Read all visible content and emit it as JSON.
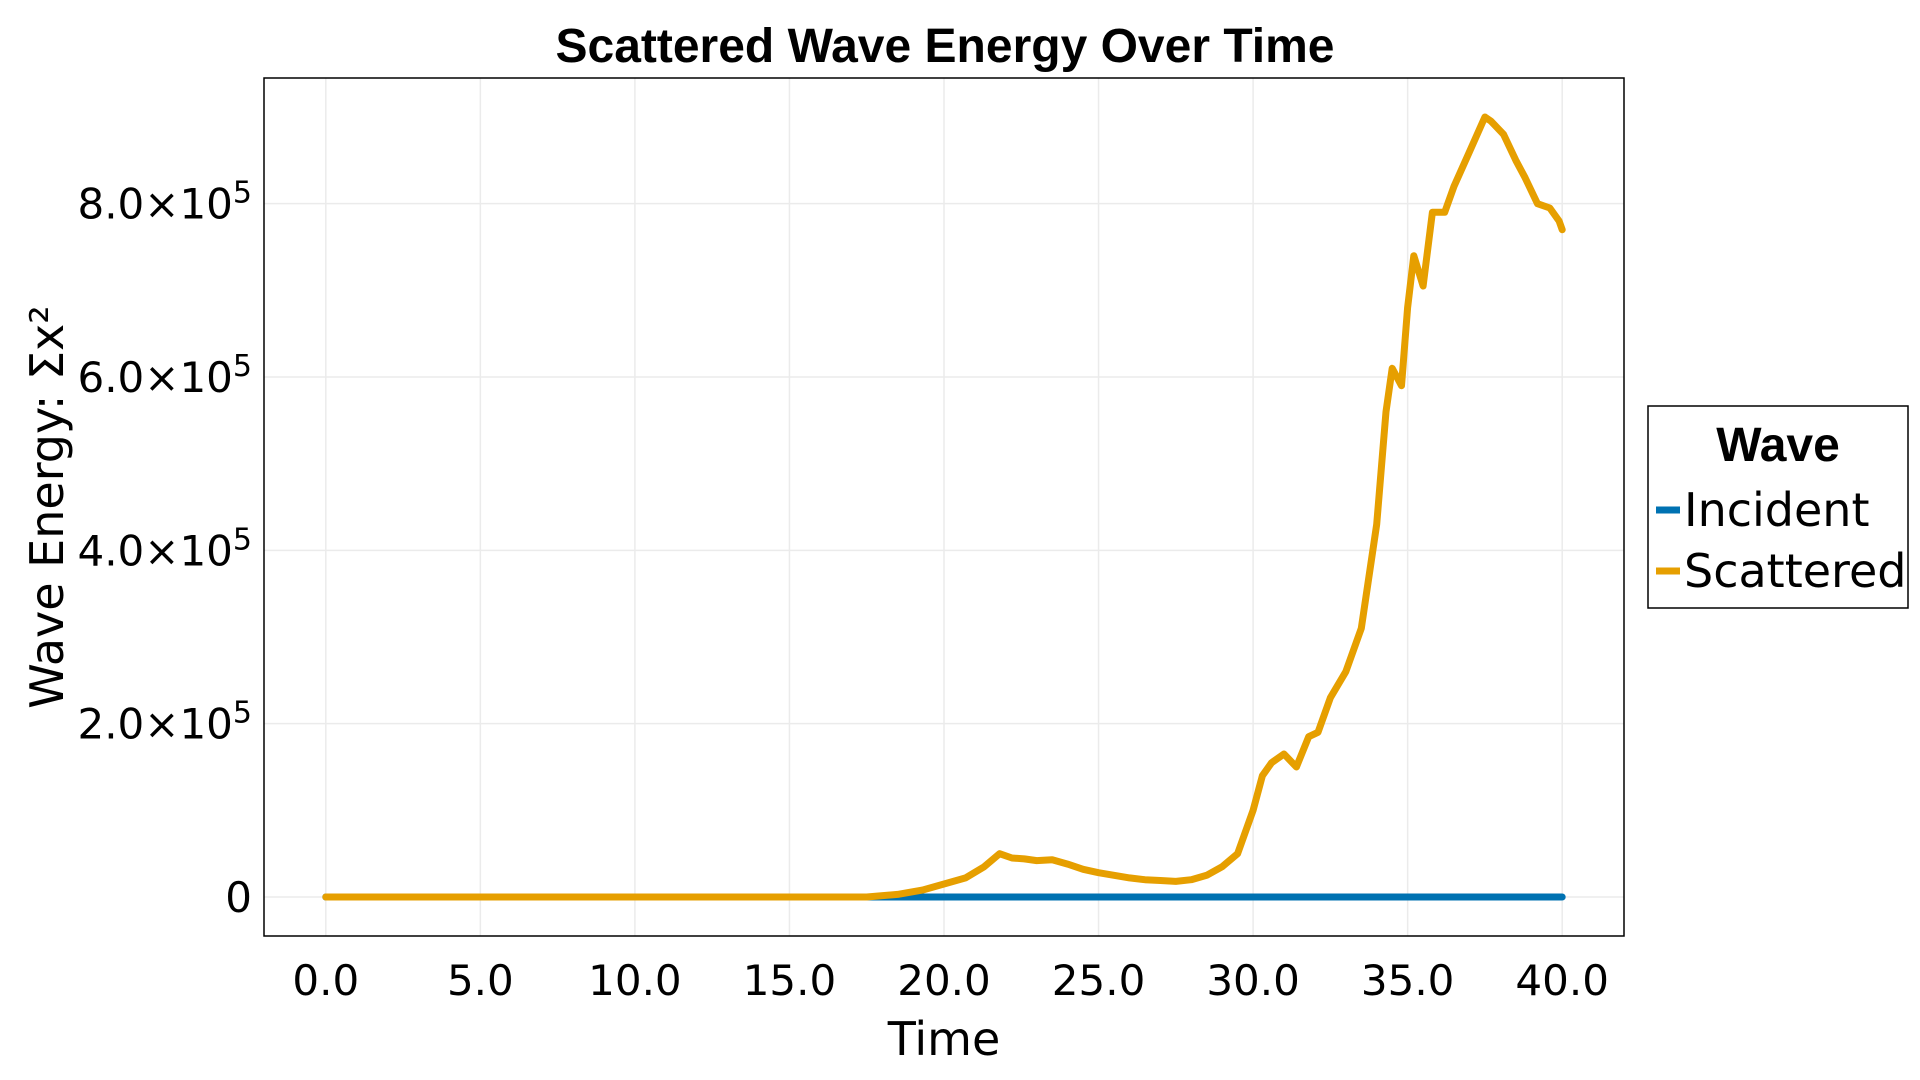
{
  "chart_data": {
    "type": "line",
    "title": "Scattered Wave Energy Over Time",
    "xlabel": "Time",
    "ylabel": "Wave Energy: Σx²",
    "xlim": [
      -2.0,
      42.0
    ],
    "ylim": [
      -45000,
      945000
    ],
    "x_ticks": [
      0,
      5,
      10,
      15,
      20,
      25,
      30,
      35,
      40
    ],
    "x_tick_labels": [
      "0.0",
      "5.0",
      "10.0",
      "15.0",
      "20.0",
      "25.0",
      "30.0",
      "35.0",
      "40.0"
    ],
    "y_ticks": [
      0,
      200000,
      400000,
      600000,
      800000
    ],
    "y_tick_labels": [
      {
        "mantissa": "0",
        "exponent": ""
      },
      {
        "mantissa": "2.0×10",
        "exponent": "5"
      },
      {
        "mantissa": "4.0×10",
        "exponent": "5"
      },
      {
        "mantissa": "6.0×10",
        "exponent": "5"
      },
      {
        "mantissa": "8.0×10",
        "exponent": "5"
      }
    ],
    "grid": true,
    "legend": {
      "title": "Wave",
      "placement": "right"
    },
    "series": [
      {
        "name": "Incident",
        "color": "#0072b2",
        "x": [
          0,
          40
        ],
        "y": [
          0,
          0
        ]
      },
      {
        "name": "Scattered",
        "color": "#e69f00",
        "x": [
          0,
          17.5,
          18.5,
          19.3,
          20.0,
          20.7,
          21.3,
          21.8,
          22.2,
          22.6,
          23.0,
          23.5,
          24.0,
          24.5,
          25.0,
          25.5,
          26.0,
          26.5,
          27.0,
          27.5,
          28.0,
          28.5,
          29.0,
          29.5,
          30.0,
          30.3,
          30.6,
          31.0,
          31.4,
          31.8,
          32.1,
          32.5,
          33.0,
          33.5,
          34.0,
          34.3,
          34.5,
          34.8,
          35.0,
          35.2,
          35.5,
          35.8,
          36.2,
          36.5,
          37.0,
          37.5,
          37.7,
          38.1,
          38.5,
          38.8,
          39.2,
          39.6,
          39.9,
          40.0
        ],
        "y": [
          0,
          0,
          3000,
          8000,
          15000,
          22000,
          35000,
          50000,
          45000,
          44000,
          42000,
          43000,
          38000,
          32000,
          28000,
          25000,
          22000,
          20000,
          19000,
          18000,
          20000,
          25000,
          35000,
          50000,
          100000,
          140000,
          155000,
          165000,
          150000,
          185000,
          190000,
          230000,
          260000,
          310000,
          430000,
          560000,
          610000,
          590000,
          680000,
          740000,
          705000,
          790000,
          790000,
          820000,
          860000,
          900000,
          895000,
          880000,
          850000,
          830000,
          800000,
          795000,
          780000,
          770000
        ]
      }
    ]
  }
}
